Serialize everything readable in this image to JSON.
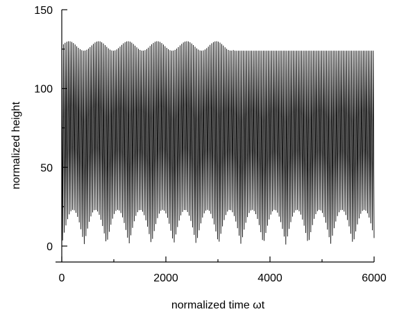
{
  "chart_data": {
    "type": "line",
    "title": "",
    "xlabel": "normalized time ωt",
    "ylabel": "normalized height",
    "xlim": [
      0,
      6000
    ],
    "ylim": [
      0,
      150
    ],
    "xticks": [
      0,
      2000,
      4000,
      6000
    ],
    "yticks": [
      0,
      50,
      100,
      150
    ],
    "xtick_labels": [
      "0",
      "2000",
      "4000",
      "6000"
    ],
    "ytick_labels": [
      "0",
      "50",
      "100",
      "150"
    ],
    "grid": false,
    "legend": "none",
    "line_color": "#000000",
    "series": [
      {
        "oscillation_period": 32,
        "minimum": 0,
        "segments": [
          {
            "x_start": 0,
            "x_end": 3300,
            "peak_min": 124,
            "peak_max": 130
          },
          {
            "x_start": 3300,
            "x_end": 6000,
            "peak_min": 124,
            "peak_max": 124
          }
        ]
      }
    ]
  }
}
